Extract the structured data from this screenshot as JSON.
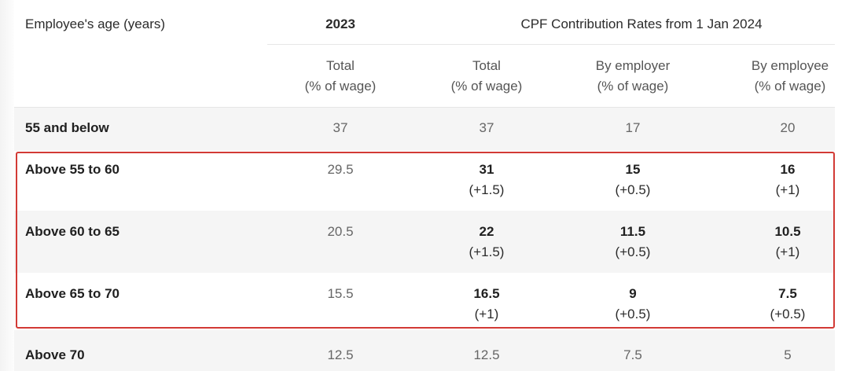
{
  "table": {
    "headers": {
      "age_label": "Employee's age (years)",
      "year_2023": "2023",
      "year_2024_group": "CPF Contribution Rates from 1 Jan 2024"
    },
    "subheaders": [
      {
        "line1": "Total",
        "line2": "(% of wage)"
      },
      {
        "line1": "Total",
        "line2": "(% of wage)"
      },
      {
        "line1": "By employer",
        "line2": "(% of wage)"
      },
      {
        "line1": "By employee",
        "line2": "(% of wage)"
      }
    ],
    "rows": [
      {
        "age": "55 and below",
        "v2023": "37",
        "total": "37",
        "total_change": "",
        "employer": "17",
        "employer_change": "",
        "employee": "20",
        "employee_change": ""
      },
      {
        "age": "Above 55 to 60",
        "v2023": "29.5",
        "total": "31",
        "total_change": "(+1.5)",
        "employer": "15",
        "employer_change": "(+0.5)",
        "employee": "16",
        "employee_change": "(+1)"
      },
      {
        "age": "Above 60 to 65",
        "v2023": "20.5",
        "total": "22",
        "total_change": "(+1.5)",
        "employer": "11.5",
        "employer_change": "(+0.5)",
        "employee": "10.5",
        "employee_change": "(+1)"
      },
      {
        "age": "Above 65 to 70",
        "v2023": "15.5",
        "total": "16.5",
        "total_change": "(+1)",
        "employer": "9",
        "employer_change": "(+0.5)",
        "employee": "7.5",
        "employee_change": "(+0.5)"
      },
      {
        "age": "Above 70",
        "v2023": "12.5",
        "total": "12.5",
        "total_change": "",
        "employer": "7.5",
        "employer_change": "",
        "employee": "5",
        "employee_change": ""
      }
    ]
  },
  "colors": {
    "highlight_border": "#d23a35",
    "stripe": "#f5f5f5"
  }
}
